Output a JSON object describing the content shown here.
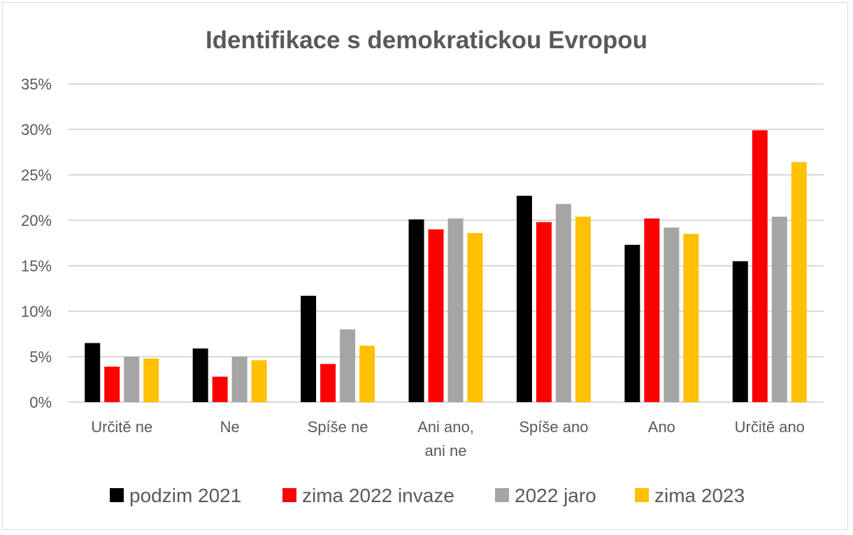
{
  "chart_data": {
    "type": "bar",
    "title": "Identifikace s demokratickou Evropou",
    "xlabel": "",
    "ylabel": "",
    "ylim": [
      0,
      35
    ],
    "y_ticks": [
      "0%",
      "5%",
      "10%",
      "15%",
      "20%",
      "25%",
      "30%",
      "35%"
    ],
    "y_tick_values": [
      0,
      5,
      10,
      15,
      20,
      25,
      30,
      35
    ],
    "grid": true,
    "legend_position": "bottom",
    "categories": [
      "Určitě ne",
      "Ne",
      "Spíše ne",
      "Ani ano, ani ne",
      "Spíše ano",
      "Ano",
      "Určitě ano"
    ],
    "series": [
      {
        "name": "podzim 2021",
        "color": "#000000",
        "values": [
          6.5,
          5.9,
          11.7,
          20.1,
          22.7,
          17.3,
          15.5
        ]
      },
      {
        "name": "zima 2022 invaze",
        "color": "#ff0000",
        "values": [
          3.9,
          2.8,
          4.2,
          19.0,
          19.8,
          20.2,
          29.9
        ]
      },
      {
        "name": "2022 jaro",
        "color": "#a5a5a5",
        "values": [
          5.0,
          5.0,
          8.0,
          20.2,
          21.8,
          19.2,
          20.4
        ]
      },
      {
        "name": "zima 2023",
        "color": "#ffc000",
        "values": [
          4.8,
          4.6,
          6.2,
          18.6,
          20.4,
          18.5,
          26.4
        ]
      }
    ]
  }
}
